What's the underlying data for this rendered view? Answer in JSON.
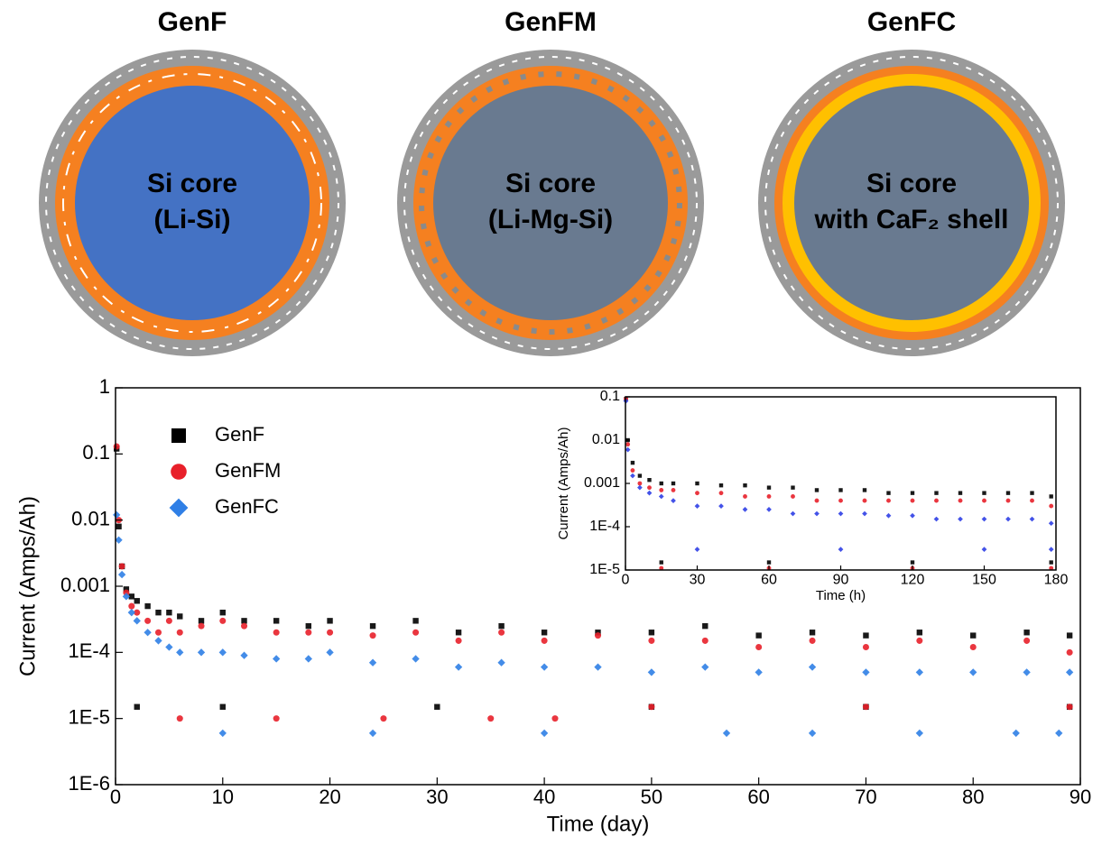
{
  "diagrams": [
    {
      "title": "GenF",
      "label": [
        "Si core",
        "(Li-Si)"
      ]
    },
    {
      "title": "GenFM",
      "label": [
        "Si core",
        "(Li-Mg-Si)"
      ]
    },
    {
      "title": "GenFC",
      "label": [
        "Si core",
        "with CaF₂ shell"
      ]
    }
  ],
  "chart_data": [
    {
      "type": "scatter",
      "xlabel": "Time (day)",
      "ylabel": "Current (Amps/Ah)",
      "ylog": true,
      "legend": "upper left",
      "xlim": [
        0,
        90
      ],
      "xticks": [
        0,
        10,
        20,
        30,
        40,
        50,
        60,
        70,
        80,
        90
      ],
      "ylim": [
        1e-06,
        1
      ],
      "yticks": [
        1,
        0.1,
        0.01,
        0.001,
        {
          "value": 0.0001,
          "label": "1E-4"
        },
        {
          "value": 1e-05,
          "label": "1E-5"
        },
        {
          "value": 1e-06,
          "label": "1E-6"
        }
      ],
      "series": [
        {
          "name": "GenF",
          "color": "#000000",
          "marker": "square",
          "x": [
            0.1,
            0.3,
            0.6,
            1,
            1.5,
            2,
            3,
            4,
            5,
            6,
            8,
            10,
            12,
            15,
            18,
            20,
            24,
            28,
            32,
            36,
            40,
            45,
            50,
            55,
            60,
            65,
            70,
            75,
            80,
            85,
            89,
            2,
            10,
            30,
            50,
            70,
            89
          ],
          "values": [
            0.12,
            0.008,
            0.002,
            0.0009,
            0.0007,
            0.0006,
            0.0005,
            0.0004,
            0.0004,
            0.00035,
            0.0003,
            0.0004,
            0.0003,
            0.0003,
            0.00025,
            0.0003,
            0.00025,
            0.0003,
            0.0002,
            0.00025,
            0.0002,
            0.0002,
            0.0002,
            0.00025,
            0.00018,
            0.0002,
            0.00018,
            0.0002,
            0.00018,
            0.0002,
            0.00018,
            1.5e-05,
            1.5e-05,
            1.5e-05,
            1.5e-05,
            1.5e-05,
            1.5e-05
          ]
        },
        {
          "name": "GenFM",
          "color": "#e8202a",
          "marker": "circle",
          "x": [
            0.1,
            0.3,
            0.6,
            1,
            1.5,
            2,
            3,
            4,
            5,
            6,
            8,
            10,
            12,
            15,
            18,
            20,
            24,
            28,
            32,
            36,
            40,
            45,
            50,
            55,
            60,
            65,
            70,
            75,
            80,
            85,
            89,
            6,
            15,
            25,
            35,
            41,
            50,
            70,
            89
          ],
          "values": [
            0.13,
            0.01,
            0.002,
            0.0008,
            0.0005,
            0.0004,
            0.0003,
            0.0002,
            0.0003,
            0.0002,
            0.00025,
            0.0003,
            0.00025,
            0.0002,
            0.0002,
            0.0002,
            0.00018,
            0.0002,
            0.00015,
            0.0002,
            0.00015,
            0.00018,
            0.00015,
            0.00015,
            0.00012,
            0.00015,
            0.00012,
            0.00015,
            0.00012,
            0.00015,
            0.0001,
            1e-05,
            1e-05,
            1e-05,
            1e-05,
            1e-05,
            1.5e-05,
            1.5e-05,
            1.5e-05
          ]
        },
        {
          "name": "GenFC",
          "color": "#2f7fe6",
          "marker": "diamond",
          "x": [
            0.1,
            0.3,
            0.6,
            1,
            1.5,
            2,
            3,
            4,
            5,
            6,
            8,
            10,
            12,
            15,
            18,
            20,
            24,
            28,
            32,
            36,
            40,
            45,
            50,
            55,
            60,
            65,
            70,
            75,
            80,
            85,
            89,
            10,
            24,
            40,
            57,
            65,
            75,
            84,
            88
          ],
          "values": [
            0.012,
            0.005,
            0.0015,
            0.0007,
            0.0004,
            0.0003,
            0.0002,
            0.00015,
            0.00012,
            0.0001,
            0.0001,
            0.0001,
            9e-05,
            8e-05,
            8e-05,
            0.0001,
            7e-05,
            8e-05,
            6e-05,
            7e-05,
            6e-05,
            6e-05,
            5e-05,
            6e-05,
            5e-05,
            6e-05,
            5e-05,
            5e-05,
            5e-05,
            5e-05,
            5e-05,
            6e-06,
            6e-06,
            6e-06,
            6e-06,
            6e-06,
            6e-06,
            6e-06,
            6e-06
          ]
        }
      ]
    },
    {
      "type": "scatter",
      "xlabel": "Time (h)",
      "ylabel": "Current (Amps/Ah)",
      "ylog": true,
      "xlim": [
        0,
        180
      ],
      "xticks": [
        0,
        30,
        60,
        90,
        120,
        150,
        180
      ],
      "ylim": [
        1e-05,
        0.1
      ],
      "yticks": [
        0.1,
        0.01,
        0.001,
        {
          "value": 0.0001,
          "label": "1E-4"
        },
        {
          "value": 1e-05,
          "label": "1E-5"
        }
      ],
      "series": [
        {
          "color": "#000000",
          "marker": "square",
          "x": [
            0.2,
            1,
            3,
            6,
            10,
            15,
            20,
            30,
            40,
            50,
            60,
            70,
            80,
            90,
            100,
            110,
            120,
            130,
            140,
            150,
            160,
            170,
            178,
            15,
            60,
            120,
            178
          ],
          "values": [
            0.09,
            0.01,
            0.003,
            0.0015,
            0.0012,
            0.001,
            0.001,
            0.001,
            0.0009,
            0.0009,
            0.0008,
            0.0008,
            0.0007,
            0.0007,
            0.0007,
            0.0006,
            0.0006,
            0.0006,
            0.0006,
            0.0006,
            0.0006,
            0.0006,
            0.0005,
            1.5e-05,
            1.5e-05,
            1.5e-05,
            1.5e-05
          ]
        },
        {
          "color": "#e8202a",
          "marker": "circle",
          "x": [
            0.2,
            1,
            3,
            6,
            10,
            15,
            20,
            30,
            40,
            50,
            60,
            70,
            80,
            90,
            100,
            110,
            120,
            130,
            140,
            150,
            160,
            170,
            178,
            15,
            60,
            120,
            178
          ],
          "values": [
            0.09,
            0.008,
            0.002,
            0.001,
            0.0008,
            0.0007,
            0.0007,
            0.0006,
            0.0006,
            0.0005,
            0.0005,
            0.0005,
            0.0004,
            0.0004,
            0.0004,
            0.0004,
            0.0004,
            0.0004,
            0.0004,
            0.0004,
            0.0004,
            0.0004,
            0.0003,
            1.1e-05,
            1.1e-05,
            1.1e-05,
            1.1e-05
          ]
        },
        {
          "color": "#2f3fe6",
          "marker": "diamond",
          "x": [
            0.2,
            1,
            3,
            6,
            10,
            15,
            20,
            30,
            40,
            50,
            60,
            70,
            80,
            90,
            100,
            110,
            120,
            130,
            140,
            150,
            160,
            170,
            178,
            30,
            90,
            150,
            178
          ],
          "values": [
            0.08,
            0.006,
            0.0015,
            0.0008,
            0.0006,
            0.0005,
            0.0004,
            0.0003,
            0.0003,
            0.00025,
            0.00025,
            0.0002,
            0.0002,
            0.0002,
            0.0002,
            0.00018,
            0.00018,
            0.00015,
            0.00015,
            0.00015,
            0.00015,
            0.00015,
            0.00012,
            3e-05,
            3e-05,
            3e-05,
            3e-05
          ]
        }
      ]
    }
  ]
}
